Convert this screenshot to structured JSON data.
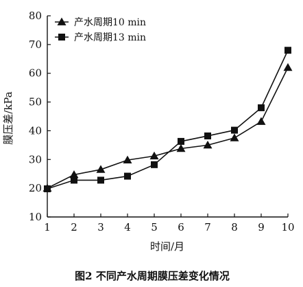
{
  "chart_data": {
    "type": "line",
    "title": "",
    "caption": "图2   不同产水周期膜压差变化情况",
    "xlabel": "时间/月",
    "ylabel": "膜压差/kPa",
    "x": [
      1,
      2,
      3,
      4,
      5,
      6,
      7,
      8,
      9,
      10
    ],
    "xlim": [
      1,
      10
    ],
    "ylim": [
      10,
      80
    ],
    "xticks": [
      1,
      2,
      3,
      4,
      5,
      6,
      7,
      8,
      9,
      10
    ],
    "yticks": [
      10,
      20,
      30,
      40,
      50,
      60,
      70,
      80
    ],
    "grid": false,
    "legend_position": "top-left",
    "series": [
      {
        "name": "产水周期10 min",
        "marker": "triangle",
        "color": "#111111",
        "values": [
          20.0,
          24.7,
          26.5,
          29.8,
          31.2,
          33.8,
          35.0,
          37.5,
          43.2,
          62.0
        ]
      },
      {
        "name": "产水周期13 min",
        "marker": "square",
        "color": "#111111",
        "values": [
          19.8,
          22.8,
          22.8,
          24.2,
          28.2,
          36.3,
          38.2,
          40.2,
          48.0,
          68.0
        ]
      }
    ]
  }
}
